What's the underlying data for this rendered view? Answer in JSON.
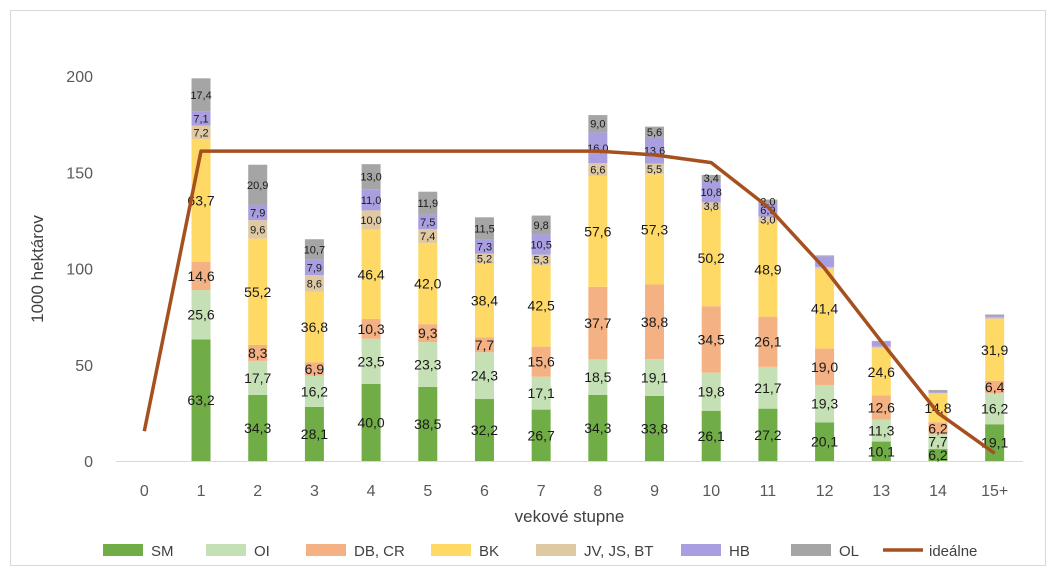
{
  "chart_data": {
    "type": "bar",
    "stacked": true,
    "xlabel": "vekové stupne",
    "ylabel": "1000 hektárov",
    "ylim": [
      0,
      200
    ],
    "yticks": [
      0,
      50,
      100,
      150,
      200
    ],
    "grid": false,
    "legend_position": "bottom",
    "categories": [
      "0",
      "1",
      "2",
      "3",
      "4",
      "5",
      "6",
      "7",
      "8",
      "9",
      "10",
      "11",
      "12",
      "13",
      "14",
      "15+"
    ],
    "series": [
      {
        "name": "SM",
        "color": "#70ad47",
        "values": [
          0,
          63.2,
          34.3,
          28.1,
          40.0,
          38.5,
          32.2,
          26.7,
          34.3,
          33.8,
          26.1,
          27.2,
          20.1,
          10.1,
          6.2,
          19.1
        ],
        "labels": [
          "",
          "63,2",
          "34,3",
          "28,1",
          "40,0",
          "38,5",
          "32,2",
          "26,7",
          "34,3",
          "33,8",
          "26,1",
          "27,2",
          "20,1",
          "10,1",
          "6,2",
          "19,1"
        ]
      },
      {
        "name": "OI",
        "color": "#c5e0b4",
        "values": [
          0,
          25.6,
          17.7,
          16.2,
          23.5,
          23.3,
          24.3,
          17.1,
          18.5,
          19.1,
          19.8,
          21.7,
          19.3,
          11.3,
          7.7,
          16.2
        ],
        "labels": [
          "",
          "25,6",
          "17,7",
          "16,2",
          "23,5",
          "23,3",
          "24,3",
          "17,1",
          "18,5",
          "19,1",
          "19,8",
          "21,7",
          "19,3",
          "11,3",
          "7,7",
          "16,2"
        ]
      },
      {
        "name": "DB, CR",
        "color": "#f4b183",
        "values": [
          0,
          14.6,
          8.3,
          6.9,
          10.3,
          9.3,
          7.7,
          15.6,
          37.7,
          38.8,
          34.5,
          26.1,
          19.0,
          12.6,
          6.2,
          6.4
        ],
        "labels": [
          "",
          "14,6",
          "8,3",
          "6,9",
          "10,3",
          "9,3",
          "7,7",
          "15,6",
          "37,7",
          "38,8",
          "34,5",
          "26,1",
          "19,0",
          "12,6",
          "6,2",
          "6,4"
        ]
      },
      {
        "name": "BK",
        "color": "#ffd966",
        "values": [
          0,
          63.7,
          55.2,
          36.8,
          46.4,
          42.0,
          38.4,
          42.5,
          57.6,
          57.3,
          50.2,
          48.9,
          41.4,
          24.6,
          14.8,
          31.9
        ],
        "labels": [
          "",
          "63,7",
          "55,2",
          "36,8",
          "46,4",
          "42,0",
          "38,4",
          "42,5",
          "57,6",
          "57,3",
          "50,2",
          "48,9",
          "41,4",
          "24,6",
          "14,8",
          "31,9"
        ]
      },
      {
        "name": "JV, JS, BT",
        "color": "#dfc9a3",
        "values": [
          0,
          7.2,
          9.6,
          8.6,
          10.0,
          7.4,
          5.2,
          5.3,
          6.6,
          5.5,
          3.8,
          3.0,
          1.0,
          0.8,
          0.5,
          1.0
        ],
        "labels": [
          "",
          "7,2",
          "9,6",
          "8,6",
          "10,0",
          "7,4",
          "5,2",
          "5,3",
          "6,6",
          "5,5",
          "3,8",
          "3,0",
          "",
          "",
          "",
          ""
        ]
      },
      {
        "name": "HB",
        "color": "#a99fe0",
        "values": [
          0,
          7.1,
          7.9,
          7.9,
          11.0,
          7.5,
          7.3,
          10.5,
          16.0,
          13.6,
          10.8,
          6.9,
          5.5,
          2.5,
          1.0,
          1.0
        ],
        "labels": [
          "",
          "7,1",
          "7,9",
          "7,9",
          "11,0",
          "7,5",
          "7,3",
          "10,5",
          "16,0",
          "13,6",
          "10,8",
          "6,9",
          "",
          "",
          "",
          ""
        ]
      },
      {
        "name": "OL",
        "color": "#a5a5a5",
        "values": [
          0,
          17.4,
          20.9,
          10.7,
          13.0,
          11.9,
          11.5,
          9.8,
          9.0,
          5.6,
          3.4,
          2.0,
          0.5,
          0.5,
          0.5,
          0.5
        ],
        "labels": [
          "",
          "17,4",
          "20,9",
          "10,7",
          "13,0",
          "11,9",
          "11,5",
          "9,8",
          "9,0",
          "5,6",
          "3,4",
          "2,0",
          "",
          "",
          "",
          ""
        ]
      }
    ],
    "line": {
      "name": "ideálne",
      "color": "#a5501e",
      "values": [
        15.5,
        161,
        161,
        161,
        161,
        161,
        161,
        161,
        161,
        159,
        155,
        132,
        100,
        62,
        25,
        4
      ]
    }
  }
}
